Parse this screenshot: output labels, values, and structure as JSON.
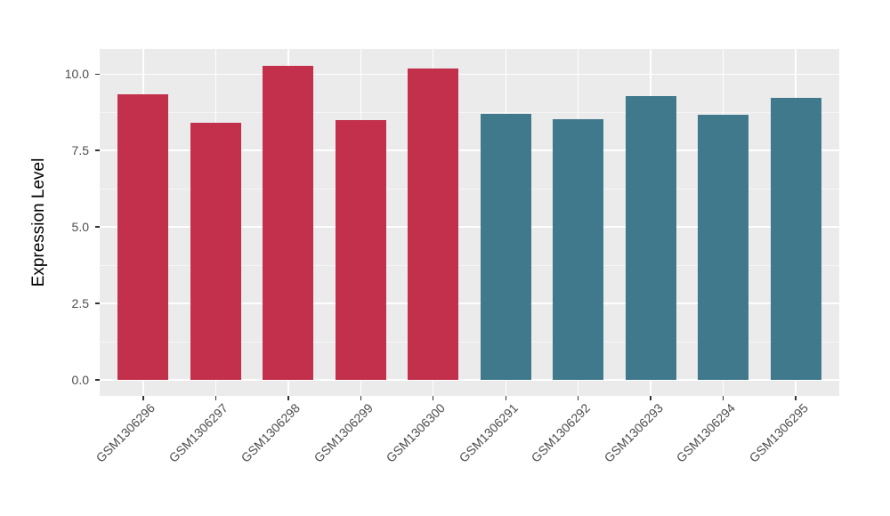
{
  "chart_data": {
    "type": "bar",
    "title": "",
    "xlabel": "",
    "ylabel": "Expression Level",
    "categories": [
      "GSM1306296",
      "GSM1306297",
      "GSM1306298",
      "GSM1306299",
      "GSM1306300",
      "GSM1306291",
      "GSM1306292",
      "GSM1306293",
      "GSM1306294",
      "GSM1306295"
    ],
    "values": [
      9.34,
      8.41,
      10.26,
      8.5,
      10.19,
      8.7,
      8.52,
      9.28,
      8.66,
      9.23
    ],
    "groups": [
      "group1",
      "group1",
      "group1",
      "group1",
      "group1",
      "group2",
      "group2",
      "group2",
      "group2",
      "group2"
    ],
    "group_colors": {
      "group1": "#C2304B",
      "group2": "#41798C"
    },
    "bar_width": 0.7,
    "ylim": [
      -0.52,
      10.82
    ],
    "y_ticks": {
      "values": [
        0,
        2.5,
        5,
        7.5,
        10
      ],
      "labels": [
        "0.0",
        "2.5",
        "5.0",
        "7.5",
        "10.0"
      ]
    },
    "y_minor_ticks": [
      1.25,
      3.75,
      6.25,
      8.75
    ],
    "grid": "on",
    "legend": "none",
    "panel_background": "#EBEBEB",
    "grid_color": "#FFFFFF",
    "axis_text_color": "#4D4D4D",
    "x_label_angle": 45
  }
}
